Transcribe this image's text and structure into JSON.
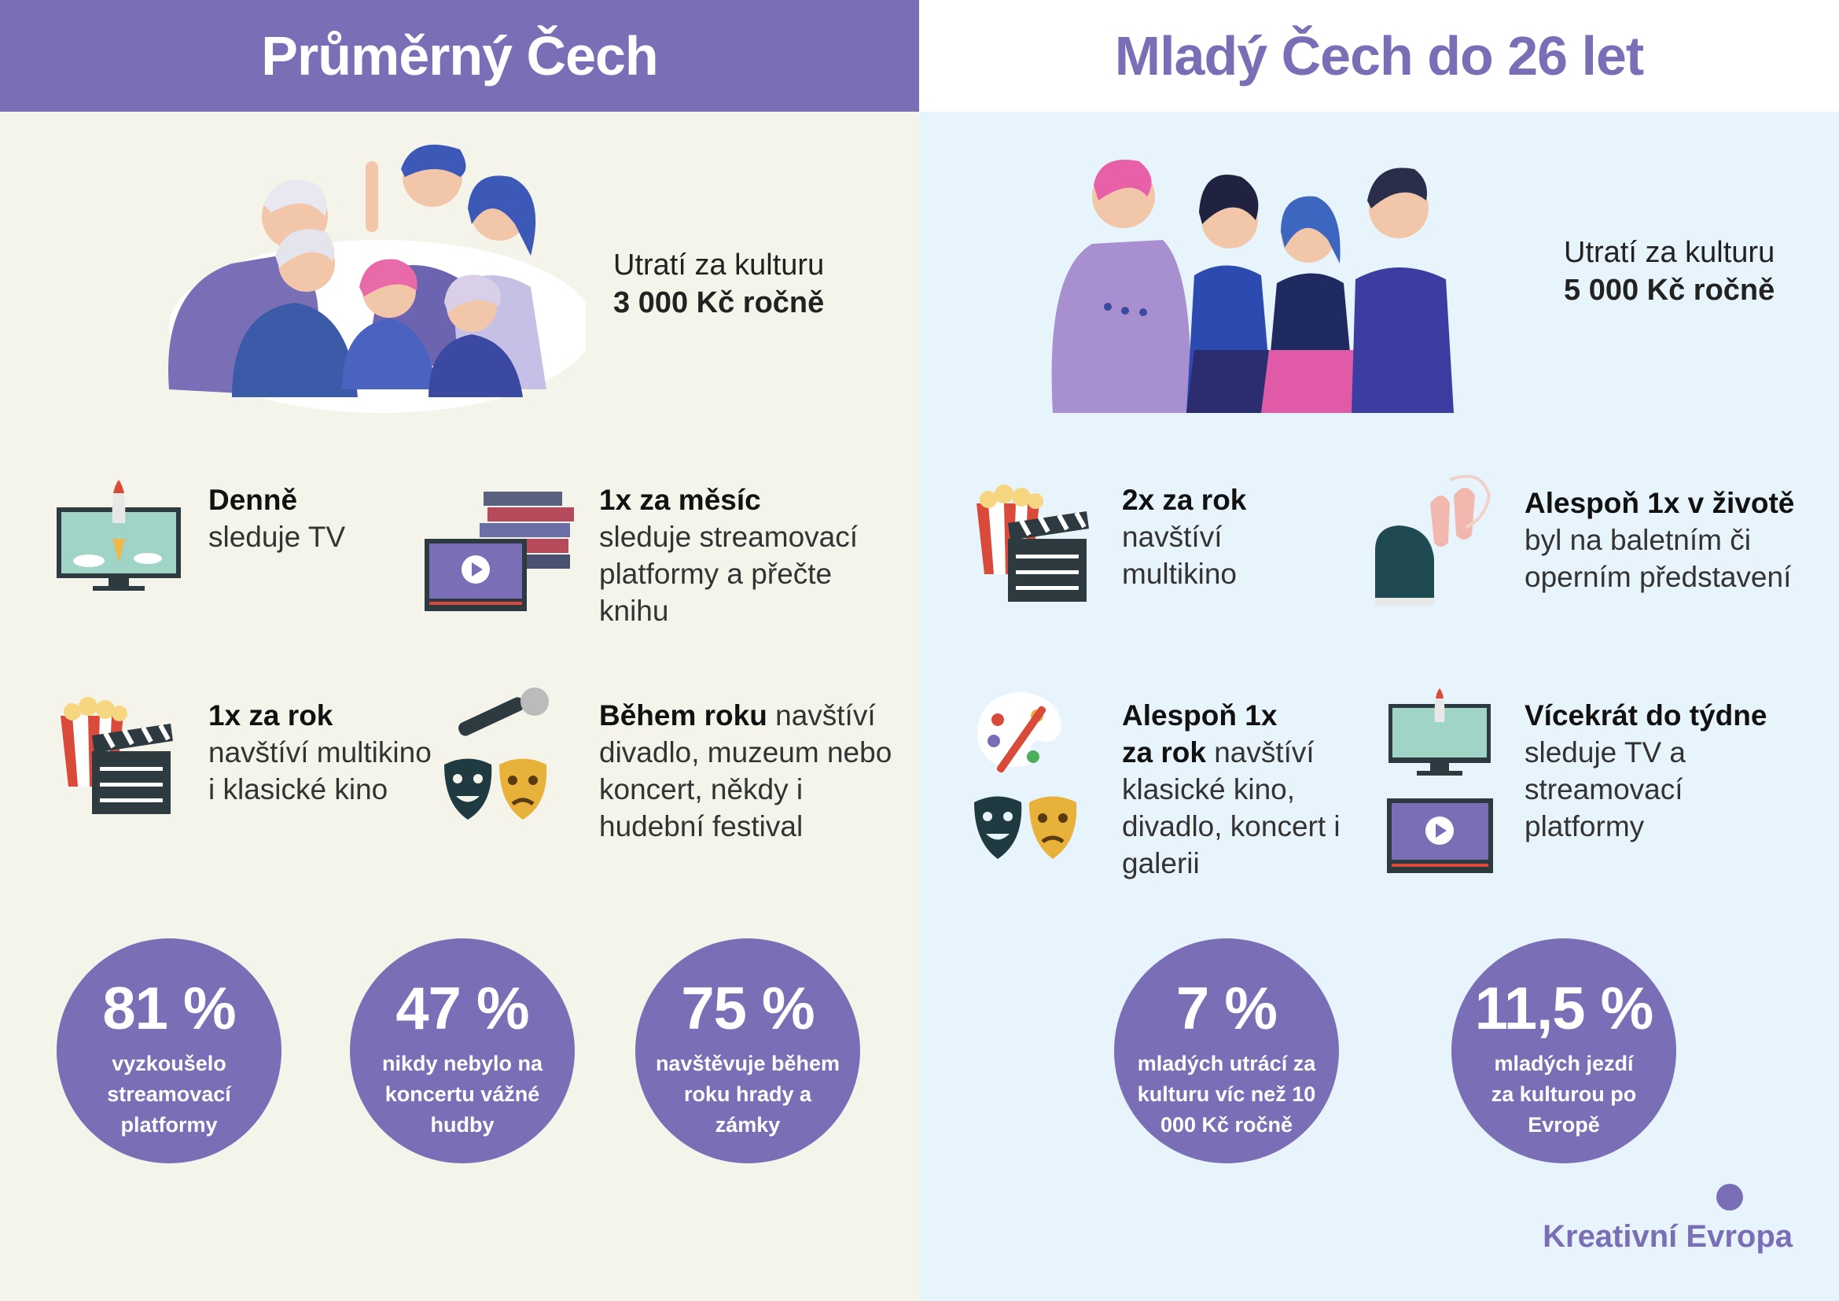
{
  "left": {
    "title": "Průměrný Čech",
    "spend_label": "Utratí za kulturu",
    "spend_value": "3 000 Kč ročně",
    "items": [
      {
        "bold": "Denně",
        "rest": "sleduje TV"
      },
      {
        "bold": "1x za měsíc",
        "rest": "sleduje streamovací platformy a přečte knihu"
      },
      {
        "bold": "1x za rok",
        "rest": "navštíví multikino i klasické kino"
      },
      {
        "bold": "Během roku",
        "rest": " navštíví divadlo, muzeum nebo koncert, někdy i hudební festival"
      }
    ],
    "stats": [
      {
        "pct": "81 %",
        "desc": "vyzkoušelo streamovací platformy"
      },
      {
        "pct": "47 %",
        "desc": "nikdy nebylo na koncertu vážné hudby"
      },
      {
        "pct": "75 %",
        "desc": "navštěvuje během roku hrady a zámky"
      }
    ]
  },
  "right": {
    "title": "Mladý Čech do 26 let",
    "spend_label": "Utratí za kulturu",
    "spend_value": "5 000 Kč ročně",
    "items": [
      {
        "bold": "2x za rok",
        "rest": "navštíví multikino"
      },
      {
        "bold": "Alespoň 1x v životě",
        "rest": "byl na baletním či operním představení"
      },
      {
        "bold1": "Alespoň 1x",
        "bold2": "za rok",
        "rest": " navštíví klasické kino, divadlo, koncert i galerii"
      },
      {
        "bold": "Vícekrát do týdne",
        "rest": "sleduje TV a streamovací platformy"
      }
    ],
    "stats": [
      {
        "pct": "7 %",
        "desc": "mladých utrácí za kulturu víc než 10 000 Kč ročně"
      },
      {
        "pct": "11,5 %",
        "desc": "mladých jezdí za kulturou po Evropě"
      }
    ]
  },
  "brand": "Kreativní Evropa",
  "colors": {
    "accent": "#7a6fb6",
    "left_bg": "#f4f4ea",
    "right_bg": "#e8f4fb"
  },
  "icons": [
    "tv-rocket-icon",
    "books-video-icon",
    "popcorn-clapper-icon",
    "microphone-masks-icon",
    "piano-ballet-icon",
    "palette-masks-icon",
    "tv-video-icon"
  ]
}
